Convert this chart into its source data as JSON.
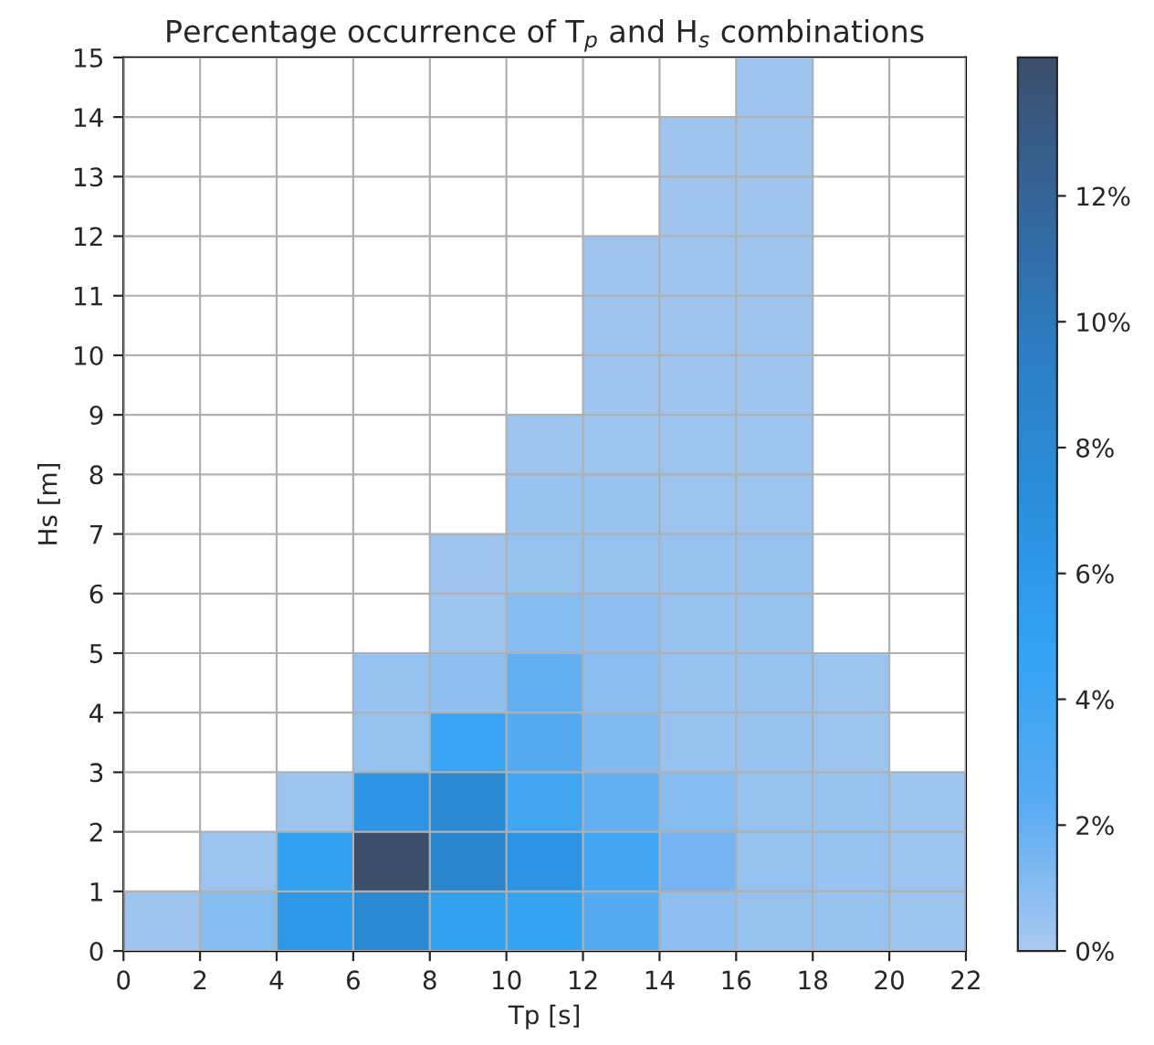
{
  "chart_data": {
    "type": "heatmap",
    "title": "Percentage occurrence of T$_{p}$ and H$_{s}$ combinations",
    "xlabel": "Tp [s]",
    "ylabel": "Hs [m]",
    "cells": [
      [
        null,
        null,
        null,
        null,
        null,
        null,
        null,
        null,
        0.3,
        null,
        null
      ],
      [
        null,
        null,
        null,
        null,
        null,
        null,
        null,
        0.3,
        0.3,
        null,
        null
      ],
      [
        null,
        null,
        null,
        null,
        null,
        null,
        null,
        0.3,
        0.3,
        null,
        null
      ],
      [
        null,
        null,
        null,
        null,
        null,
        null,
        0.3,
        0.3,
        0.3,
        null,
        null
      ],
      [
        null,
        null,
        null,
        null,
        null,
        null,
        0.3,
        0.3,
        0.3,
        null,
        null
      ],
      [
        null,
        null,
        null,
        null,
        null,
        null,
        0.3,
        0.3,
        0.3,
        null,
        null
      ],
      [
        null,
        null,
        null,
        null,
        null,
        0.3,
        0.4,
        0.4,
        0.4,
        null,
        null
      ],
      [
        null,
        null,
        null,
        null,
        null,
        0.5,
        0.5,
        0.4,
        0.4,
        null,
        null
      ],
      [
        null,
        null,
        null,
        null,
        0.3,
        0.6,
        0.6,
        0.5,
        0.5,
        null,
        null
      ],
      [
        null,
        null,
        null,
        null,
        0.4,
        1.0,
        0.8,
        0.5,
        0.5,
        null,
        null
      ],
      [
        null,
        null,
        null,
        0.5,
        0.8,
        2.0,
        0.9,
        0.5,
        0.5,
        0.4,
        null
      ],
      [
        null,
        null,
        null,
        0.6,
        4.2,
        2.5,
        1.2,
        0.5,
        0.5,
        0.4,
        null
      ],
      [
        null,
        null,
        0.4,
        6.5,
        8.0,
        3.8,
        2.0,
        1.0,
        0.6,
        0.5,
        0.4
      ],
      [
        null,
        0.4,
        5.0,
        14.2,
        8.5,
        6.5,
        3.8,
        1.5,
        0.6,
        0.5,
        0.4
      ],
      [
        0.3,
        1.0,
        6.0,
        8.0,
        5.0,
        4.5,
        2.5,
        0.8,
        0.6,
        0.5,
        0.4
      ]
    ],
    "colors": [
      "#a9c9ef",
      "#58aaf2",
      "#33a3f3",
      "#2a8fdc",
      "#2c7ec3",
      "#34669c",
      "#3b4f6b"
    ],
    "clim": [
      0,
      14.2
    ],
    "cticks": [
      {
        "value": 0,
        "label": "0%"
      },
      {
        "value": 2,
        "label": "2%"
      },
      {
        "value": 4,
        "label": "4%"
      },
      {
        "value": 6,
        "label": "6%"
      },
      {
        "value": 8,
        "label": "8%"
      },
      {
        "value": 10,
        "label": "10%"
      },
      {
        "value": 12,
        "label": "12%"
      }
    ],
    "xlim": [
      0,
      22
    ],
    "ylim": [
      0,
      15
    ],
    "xticks": [
      0,
      2,
      4,
      6,
      8,
      10,
      12,
      14,
      16,
      18,
      20,
      22
    ],
    "yticks": [
      0,
      1,
      2,
      3,
      4,
      5,
      6,
      7,
      8,
      9,
      10,
      11,
      12,
      13,
      14,
      15
    ],
    "grid": true
  }
}
